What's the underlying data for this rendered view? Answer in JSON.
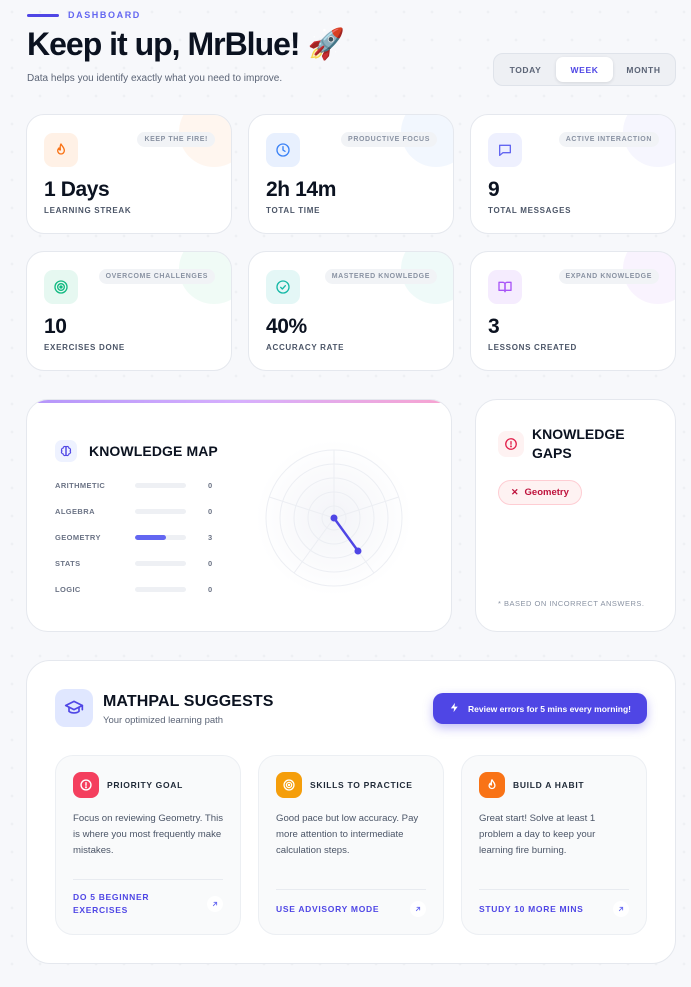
{
  "header": {
    "eyebrow": "DASHBOARD",
    "title": "Keep it up, MrBlue!",
    "title_emoji": "🚀",
    "subtitle": "Data helps you identify exactly what you need to improve."
  },
  "range_tabs": [
    {
      "label": "TODAY",
      "active": false
    },
    {
      "label": "WEEK",
      "active": true
    },
    {
      "label": "MONTH",
      "active": false
    }
  ],
  "stats": [
    {
      "tag": "KEEP THE FIRE!",
      "value": "1 Days",
      "label": "LEARNING STREAK",
      "icon": "flame-icon",
      "color": "#f97316",
      "bg": "#fff1e6"
    },
    {
      "tag": "PRODUCTIVE FOCUS",
      "value": "2h 14m",
      "label": "TOTAL TIME",
      "icon": "clock-icon",
      "color": "#3b82f6",
      "bg": "#e8f0fe"
    },
    {
      "tag": "ACTIVE INTERACTION",
      "value": "9",
      "label": "TOTAL MESSAGES",
      "icon": "message-icon",
      "color": "#6366f1",
      "bg": "#eef0fe"
    },
    {
      "tag": "OVERCOME CHALLENGES",
      "value": "10",
      "label": "EXERCISES DONE",
      "icon": "target-icon",
      "color": "#10b981",
      "bg": "#e6f8f1"
    },
    {
      "tag": "MASTERED KNOWLEDGE",
      "value": "40%",
      "label": "ACCURACY RATE",
      "icon": "check-circle-icon",
      "color": "#14b8a6",
      "bg": "#e4f7f6"
    },
    {
      "tag": "EXPAND KNOWLEDGE",
      "value": "3",
      "label": "LESSONS CREATED",
      "icon": "book-icon",
      "color": "#a855f7",
      "bg": "#f5ecfe"
    }
  ],
  "knowledge_map": {
    "title": "KNOWLEDGE MAP",
    "max": 5,
    "skills": [
      {
        "name": "ARITHMETIC",
        "count": "0",
        "level": 0
      },
      {
        "name": "ALGEBRA",
        "count": "0",
        "level": 0
      },
      {
        "name": "GEOMETRY",
        "count": "3",
        "level": 0.6
      },
      {
        "name": "STATS",
        "count": "0",
        "level": 0
      },
      {
        "name": "LOGIC",
        "count": "0",
        "level": 0
      }
    ]
  },
  "knowledge_gaps": {
    "title": "KNOWLEDGE GAPS",
    "chips": [
      "Geometry"
    ],
    "note": "* BASED ON INCORRECT ANSWERS."
  },
  "suggests": {
    "title": "MATHPAL SUGGESTS",
    "subtitle": "Your optimized learning path",
    "cta": "Review errors for 5 mins every morning!",
    "cards": [
      {
        "heading": "PRIORITY GOAL",
        "body": "Focus on reviewing Geometry. This is where you most frequently make mistakes.",
        "link": "DO 5 BEGINNER EXERCISES",
        "icon": "alert-circle-icon",
        "color": "#f43f5e"
      },
      {
        "heading": "SKILLS TO PRACTICE",
        "body": "Good pace but low accuracy. Pay more attention to intermediate calculation steps.",
        "link": "USE ADVISORY MODE",
        "icon": "target-icon",
        "color": "#f59e0b"
      },
      {
        "heading": "BUILD A HABIT",
        "body": "Great start! Solve at least 1 problem a day to keep your learning fire burning.",
        "link": "STUDY 10 MORE MINS",
        "icon": "flame-icon",
        "color": "#f97316"
      }
    ]
  }
}
